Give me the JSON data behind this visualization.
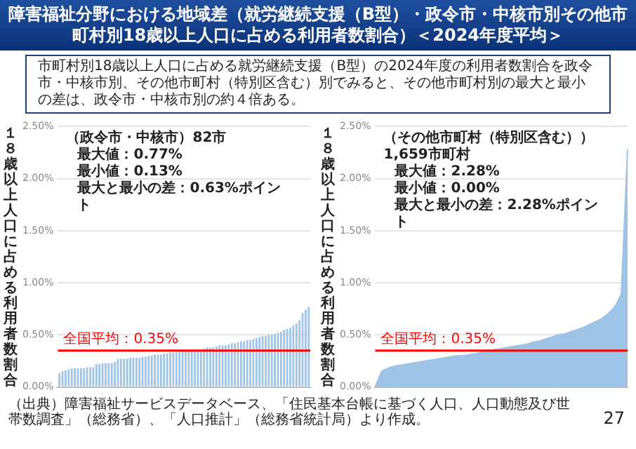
{
  "chart_data": [
    {
      "type": "other",
      "title": "障害福祉分野における地域差（就労継続支援（B型）・政令市・中核市別その他市町村別18歳以上人口に占める利用者数割合）＜2024年度平均＞",
      "subtitle": "市町村別18歳以上人口に占める就労継続支援（B型）の2024年度の利用者数割合を政令市・中核市別、その他市町村（特別区含む）別でみると、その他市町村別の最大と最小の差は、政令市・中核市別の約４倍ある。"
    },
    {
      "type": "bar",
      "ylabel": "１８歳以上人口に占める利用者数割合",
      "annotations": [
        "（政令市・中核市）82市",
        "最大値：0.77%",
        "最小値：0.13%",
        "最大と最小の差：0.63%ポイント"
      ],
      "categories": [
        null,
        null,
        null,
        null,
        null,
        null,
        null,
        null,
        null,
        null,
        null,
        null,
        null,
        null,
        null,
        null,
        null,
        null,
        null,
        null,
        null,
        null,
        null,
        null,
        null,
        null,
        null,
        null,
        null,
        null,
        null,
        null,
        null,
        null,
        null,
        null,
        null,
        null,
        null,
        null,
        null,
        null,
        null,
        null,
        null,
        null,
        null,
        null,
        null,
        null,
        null,
        null,
        null,
        null,
        null,
        null,
        null,
        null,
        null,
        null,
        null,
        null,
        null,
        null,
        null,
        null,
        null,
        null,
        null,
        null,
        null,
        null,
        null,
        null,
        null,
        null,
        null,
        null,
        null,
        null,
        null,
        null
      ],
      "series": [
        {
          "color": "#9dc3e6",
          "values": [
            0.13,
            0.15,
            0.16,
            0.17,
            0.18,
            0.18,
            0.18,
            0.18,
            0.18,
            0.19,
            0.19,
            0.19,
            0.22,
            0.22,
            0.23,
            0.23,
            0.23,
            0.23,
            0.24,
            0.27,
            0.27,
            0.27,
            0.27,
            0.28,
            0.28,
            0.28,
            0.28,
            0.29,
            0.29,
            0.3,
            0.3,
            0.31,
            0.31,
            0.31,
            0.32,
            0.32,
            0.33,
            0.33,
            0.33,
            0.34,
            0.34,
            0.35,
            0.35,
            0.35,
            0.35,
            0.36,
            0.36,
            0.37,
            0.38,
            0.38,
            0.38,
            0.39,
            0.4,
            0.4,
            0.4,
            0.41,
            0.42,
            0.42,
            0.43,
            0.44,
            0.44,
            0.45,
            0.45,
            0.46,
            0.47,
            0.48,
            0.49,
            0.49,
            0.5,
            0.5,
            0.51,
            0.52,
            0.53,
            0.55,
            0.56,
            0.57,
            0.59,
            0.61,
            0.64,
            0.71,
            0.74,
            0.77
          ]
        }
      ],
      "ylim": [
        0,
        2.5
      ],
      "yticks": [
        {
          "value": 0,
          "label": "0.00%"
        },
        {
          "value": 0.5,
          "label": "0.50%"
        },
        {
          "value": 1,
          "label": "1.00%"
        },
        {
          "value": 1.5,
          "label": "1.50%"
        },
        {
          "value": 2,
          "label": "2.00%"
        },
        {
          "value": 2.5,
          "label": "2.50%"
        }
      ],
      "grid": "y",
      "tick_labels": "y",
      "ref_lines": [
        {
          "axis": "y",
          "value": 0.35,
          "label": "全国平均：0.35%",
          "color": "#ff0000"
        }
      ]
    },
    {
      "type": "area",
      "ylabel": "１８歳以上人口に占める利用者数割合",
      "annotations": [
        "（その他市町村（特別区含む））1,659市町村",
        "最大値：2.28%",
        "最小値：0.00%",
        "最大と最小の差：2.28%ポイント"
      ],
      "categories": [
        null,
        null,
        null,
        null,
        null,
        null,
        null,
        null,
        null,
        null,
        null,
        null,
        null,
        null,
        null,
        null,
        null,
        null,
        null,
        null,
        null,
        null,
        null,
        null,
        null,
        null,
        null,
        null,
        null,
        null,
        null,
        null,
        null,
        null,
        null,
        null,
        null,
        null,
        null,
        null,
        null
      ],
      "series": [
        {
          "color": "#9dc3e6",
          "values": [
            0,
            0.15,
            0.18,
            0.2,
            0.21,
            0.22,
            0.23,
            0.24,
            0.25,
            0.26,
            0.27,
            0.28,
            0.29,
            0.3,
            0.3,
            0.31,
            0.32,
            0.34,
            0.35,
            0.36,
            0.37,
            0.38,
            0.39,
            0.4,
            0.41,
            0.43,
            0.44,
            0.46,
            0.48,
            0.5,
            0.51,
            0.53,
            0.55,
            0.57,
            0.6,
            0.63,
            0.66,
            0.71,
            0.77,
            0.89,
            2.28
          ]
        }
      ],
      "ylim": [
        0,
        2.5
      ],
      "yticks": [
        {
          "value": 0,
          "label": "0.00%"
        },
        {
          "value": 0.5,
          "label": "0.50%"
        },
        {
          "value": 1,
          "label": "1.00%"
        },
        {
          "value": 1.5,
          "label": "1.50%"
        },
        {
          "value": 2,
          "label": "2.00%"
        },
        {
          "value": 2.5,
          "label": "2.50%"
        }
      ],
      "grid": "y",
      "tick_labels": "y",
      "ref_lines": [
        {
          "axis": "y",
          "value": 0.35,
          "label": "全国平均：0.35%",
          "color": "#ff0000"
        }
      ]
    },
    {
      "type": "other",
      "annotations": [
        "（出典）障害福祉サービスデータベース、「住民基本台帳に基づく人口、人口動態及び世帯数調査」（総務省）、「人口推計」（総務省統計局）より作成。",
        "27"
      ]
    }
  ]
}
